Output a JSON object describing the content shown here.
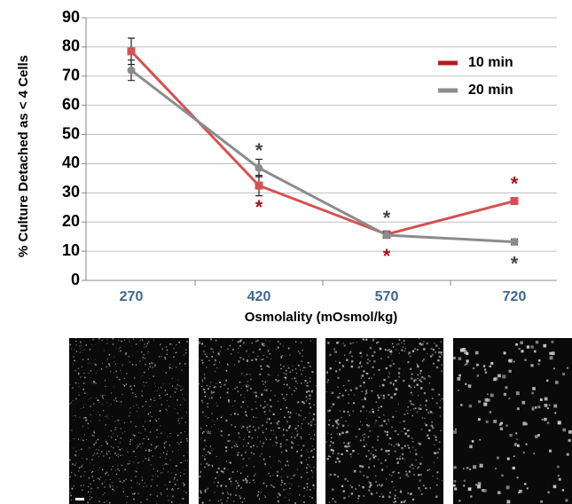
{
  "chart_data": {
    "type": "line",
    "x_label": "Osmolality (mOsmol/kg)",
    "y_label": "% Culture Detached as < 4 Cells",
    "categories": [
      "270",
      "420",
      "570",
      "720"
    ],
    "ylim": [
      0,
      90
    ],
    "yticks": [
      0,
      10,
      20,
      30,
      40,
      50,
      60,
      70,
      80,
      90
    ],
    "grid": true,
    "legend": "upper right",
    "series": [
      {
        "name": "10 min",
        "color": "#d65050",
        "legend_color": "#b01e1e",
        "marker": "square",
        "values": [
          78.5,
          32.5,
          15.8,
          27.2
        ],
        "errors": [
          4.5,
          3.5,
          1,
          1
        ],
        "significance_labels": [
          null,
          "*",
          "*",
          "*"
        ],
        "significance_color": "#a31515"
      },
      {
        "name": "20 min",
        "color": "#8c8c8c",
        "legend_color": "#8c8c8c",
        "marker": "circle",
        "values": [
          72,
          38.5,
          15.5,
          13.2
        ],
        "errors": [
          3.5,
          3,
          1,
          1
        ],
        "significance_labels": [
          null,
          "*",
          "*",
          "*"
        ],
        "significance_color": "#444444"
      }
    ]
  }
}
